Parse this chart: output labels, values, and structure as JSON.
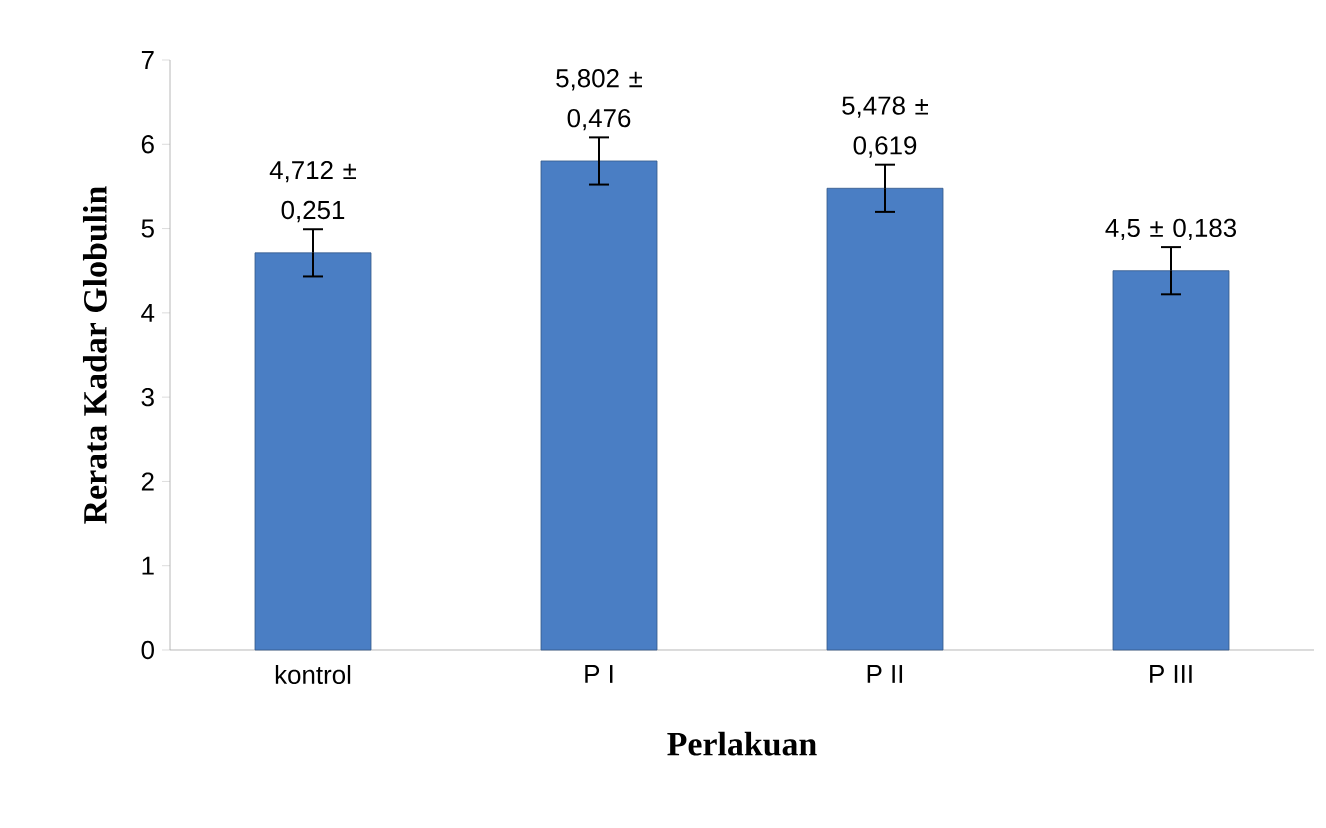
{
  "chart_data": {
    "type": "bar",
    "xlabel": "Perlakuan",
    "ylabel": "Rerata Kadar Globulin",
    "categories": [
      "kontrol",
      "P I",
      "P II",
      "P III"
    ],
    "values": [
      4.712,
      5.802,
      5.478,
      4.5
    ],
    "errors": [
      0.28,
      0.28,
      0.28,
      0.28
    ],
    "value_labels": [
      "4,712 ± 0,251",
      "5,802 ± 0,476",
      "5,478 ± 0,619",
      "4,5 ± 0,183"
    ],
    "color": "#4a7ec4",
    "ylim": [
      0,
      7
    ],
    "yticks": [
      0,
      1,
      2,
      3,
      4,
      5,
      6,
      7
    ],
    "grid": false
  }
}
